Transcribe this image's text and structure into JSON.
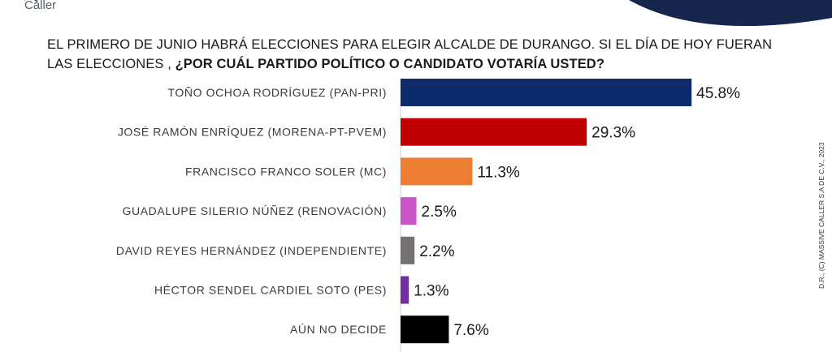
{
  "brand": {
    "logo_text": "Caller"
  },
  "copyright": "D.R., (C) MASSIVE CALLER S.A DE C.V., 2023",
  "chart_data": {
    "type": "bar",
    "orientation": "horizontal",
    "title_part1": "EL PRIMERO DE  JUNIO HABRÁ ELECCIONES PARA ELEGIR ALCALDE DE DURANGO.  SI EL DÍA DE HOY FUERAN LAS ELECCIONES , ",
    "title_part2": "¿POR CUÁL PARTIDO POLÍTICO O CANDIDATO VOTARÍA USTED?",
    "categories": [
      "TOÑO OCHOA RODRÍGUEZ (PAN-PRI)",
      "JOSÉ RAMÓN ENRÍQUEZ (MORENA-PT-PVEM)",
      "FRANCISCO FRANCO SOLER (MC)",
      "GUADALUPE SILERIO NÚÑEZ (RENOVACIÓN)",
      "DAVID REYES HERNÁNDEZ (INDEPENDIENTE)",
      "HÉCTOR SENDEL CARDIEL SOTO (PES)",
      "AÚN NO DECIDE"
    ],
    "values": [
      45.8,
      29.3,
      11.3,
      2.5,
      2.2,
      1.3,
      7.6
    ],
    "value_labels": [
      "45.8%",
      "29.3%",
      "11.3%",
      "2.5%",
      "2.2%",
      "1.3%",
      "7.6%"
    ],
    "colors": [
      "#0d2a6a",
      "#c00000",
      "#ed7d31",
      "#c955c9",
      "#757171",
      "#7030a0",
      "#000000"
    ],
    "xlim": [
      0,
      50
    ],
    "grid": false,
    "legend": "none"
  }
}
